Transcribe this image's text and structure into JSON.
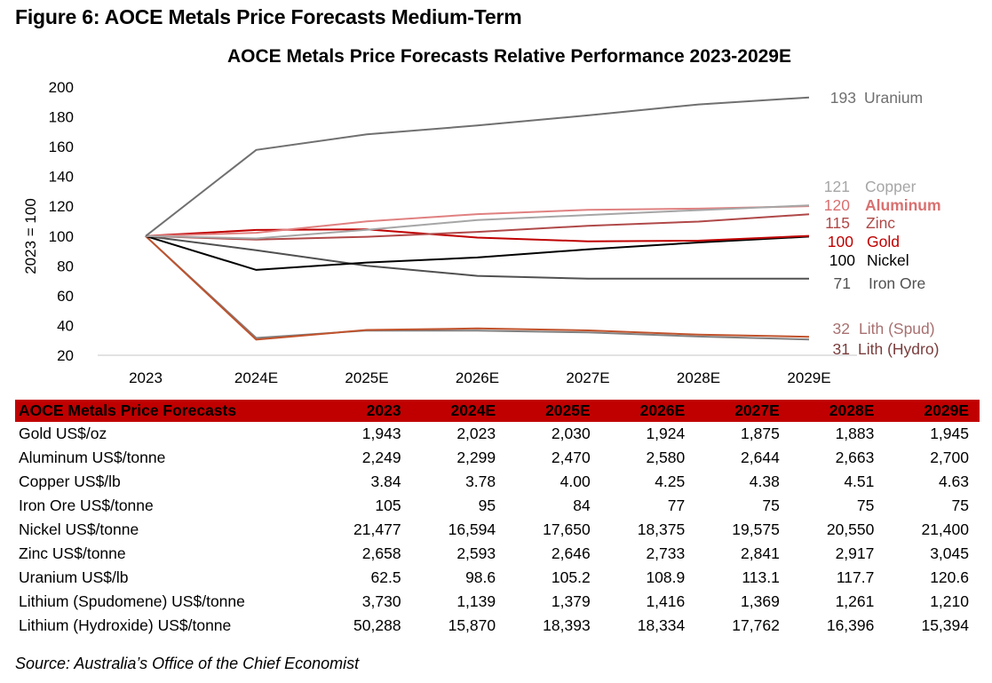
{
  "figure_title": "Figure 6: AOCE Metals Price Forecasts Medium-Term",
  "source": "Source: Australia’s Office of the Chief Economist",
  "chart_data": {
    "type": "line",
    "title": "AOCE Metals Price Forecasts Relative Performance 2023-2029E",
    "xlabel": "",
    "ylabel": "2023 = 100",
    "ylim": [
      20,
      200
    ],
    "yticks": [
      20,
      40,
      60,
      80,
      100,
      120,
      140,
      160,
      180,
      200
    ],
    "grid": false,
    "categories": [
      "2023",
      "2024E",
      "2025E",
      "2026E",
      "2027E",
      "2028E",
      "2029E"
    ],
    "series": [
      {
        "name": "Uranium",
        "end_label": "193",
        "label_text": "Uranium",
        "color": "#707070",
        "label_color": "#707070",
        "bold": false,
        "values": [
          100,
          157.8,
          168.3,
          174.2,
          181.0,
          188.3,
          193.0
        ]
      },
      {
        "name": "Copper",
        "end_label": "121",
        "label_text": "Copper",
        "color": "#a6a6a6",
        "label_color": "#a6a6a6",
        "bold": false,
        "values": [
          100,
          98.4,
          104.2,
          110.7,
          114.1,
          117.4,
          120.6
        ]
      },
      {
        "name": "Aluminum",
        "end_label": "120",
        "label_text": "Aluminum",
        "color": "#e08080",
        "label_color": "#d97070",
        "bold": true,
        "values": [
          100,
          102.2,
          109.8,
          114.7,
          117.6,
          118.4,
          120.1
        ]
      },
      {
        "name": "Zinc",
        "end_label": "115",
        "label_text": "Zinc",
        "color": "#b04848",
        "label_color": "#b04848",
        "bold": false,
        "values": [
          100,
          97.6,
          99.5,
          102.8,
          106.9,
          109.7,
          114.6
        ]
      },
      {
        "name": "Gold",
        "end_label": "100",
        "label_text": "Gold",
        "color": "#c00000",
        "label_color": "#c00000",
        "bold": false,
        "values": [
          100,
          104.1,
          104.5,
          99.0,
          96.5,
          96.9,
          100.1
        ]
      },
      {
        "name": "Nickel",
        "end_label": "100",
        "label_text": "Nickel",
        "color": "#000000",
        "label_color": "#000000",
        "bold": false,
        "values": [
          100,
          77.3,
          82.2,
          85.6,
          91.1,
          95.7,
          99.6
        ]
      },
      {
        "name": "Iron Ore",
        "end_label": "71",
        "label_text": "Iron Ore",
        "color": "#505050",
        "label_color": "#505050",
        "bold": false,
        "values": [
          100,
          90.5,
          80.0,
          73.3,
          71.4,
          71.4,
          71.4
        ]
      },
      {
        "name": "Lith (Spud)",
        "end_label": "32",
        "label_text": "Lith (Spud)",
        "color": "#c0522b",
        "label_color": "#a87070",
        "bold": false,
        "values": [
          100,
          30.5,
          37.0,
          38.0,
          36.7,
          33.8,
          32.4
        ]
      },
      {
        "name": "Lith (Hydro)",
        "end_label": "31",
        "label_text": "Lith (Hydro)",
        "color": "#808080",
        "label_color": "#7a3c3c",
        "bold": false,
        "values": [
          100,
          31.6,
          36.6,
          36.5,
          35.3,
          32.6,
          30.6
        ]
      }
    ]
  },
  "table": {
    "header": [
      "AOCE Metals Price Forecasts",
      "2023",
      "2024E",
      "2025E",
      "2026E",
      "2027E",
      "2028E",
      "2029E"
    ],
    "rows": [
      [
        "Gold US$/oz",
        "1,943",
        "2,023",
        "2,030",
        "1,924",
        "1,875",
        "1,883",
        "1,945"
      ],
      [
        "Aluminum US$/tonne",
        "2,249",
        "2,299",
        "2,470",
        "2,580",
        "2,644",
        "2,663",
        "2,700"
      ],
      [
        "Copper US$/lb",
        "3.84",
        "3.78",
        "4.00",
        "4.25",
        "4.38",
        "4.51",
        "4.63"
      ],
      [
        "Iron Ore US$/tonne",
        "105",
        "95",
        "84",
        "77",
        "75",
        "75",
        "75"
      ],
      [
        "Nickel US$/tonne",
        "21,477",
        "16,594",
        "17,650",
        "18,375",
        "19,575",
        "20,550",
        "21,400"
      ],
      [
        "Zinc US$/tonne",
        "2,658",
        "2,593",
        "2,646",
        "2,733",
        "2,841",
        "2,917",
        "3,045"
      ],
      [
        "Uranium US$/lb",
        "62.5",
        "98.6",
        "105.2",
        "108.9",
        "113.1",
        "117.7",
        "120.6"
      ],
      [
        "Lithium (Spudomene) US$/tonne",
        "3,730",
        "1,139",
        "1,379",
        "1,416",
        "1,369",
        "1,261",
        "1,210"
      ],
      [
        "Lithium (Hydroxide) US$/tonne",
        "50,288",
        "15,870",
        "18,393",
        "18,334",
        "17,762",
        "16,396",
        "15,394"
      ]
    ]
  }
}
